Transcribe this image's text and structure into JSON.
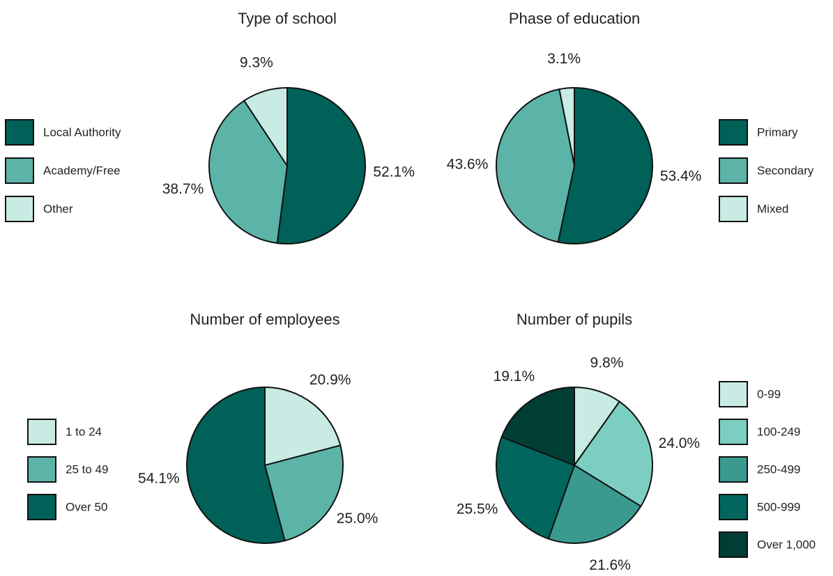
{
  "chart_data": [
    {
      "type": "pie",
      "title": "Type of school",
      "categories": [
        "Local Authority",
        "Academy/Free",
        "Other"
      ],
      "values": [
        52.1,
        38.7,
        9.3
      ],
      "value_labels": [
        "52.1%",
        "38.7%",
        "9.3%"
      ],
      "colors": [
        "#006158",
        "#5cb4a8",
        "#c8ebe3"
      ],
      "legend": "left"
    },
    {
      "type": "pie",
      "title": "Phase of education",
      "categories": [
        "Primary",
        "Secondary",
        "Mixed"
      ],
      "values": [
        53.4,
        43.6,
        3.1
      ],
      "value_labels": [
        "53.4%",
        "43.6%",
        "3.1%"
      ],
      "colors": [
        "#006158",
        "#5cb4a8",
        "#c8ebe3"
      ],
      "legend": "right"
    },
    {
      "type": "pie",
      "title": "Number of employees",
      "categories": [
        "1 to 24",
        "25 to 49",
        "Over 50"
      ],
      "values": [
        20.9,
        25.0,
        54.1
      ],
      "value_labels": [
        "20.9%",
        "25.0%",
        "54.1%"
      ],
      "colors": [
        "#c8ebe3",
        "#5cb4a8",
        "#006158"
      ],
      "legend": "left"
    },
    {
      "type": "pie",
      "title": "Number of pupils",
      "categories": [
        "0-99",
        "100-249",
        "250-499",
        "500-999",
        "Over 1,000"
      ],
      "values": [
        9.8,
        24.0,
        21.6,
        25.5,
        19.1
      ],
      "value_labels": [
        "9.8%",
        "24.0%",
        "21.6%",
        "25.5%",
        "19.1%"
      ],
      "colors": [
        "#c8ebe3",
        "#7ccfc0",
        "#3a9a90",
        "#00665e",
        "#003d35"
      ],
      "legend": "right"
    }
  ]
}
